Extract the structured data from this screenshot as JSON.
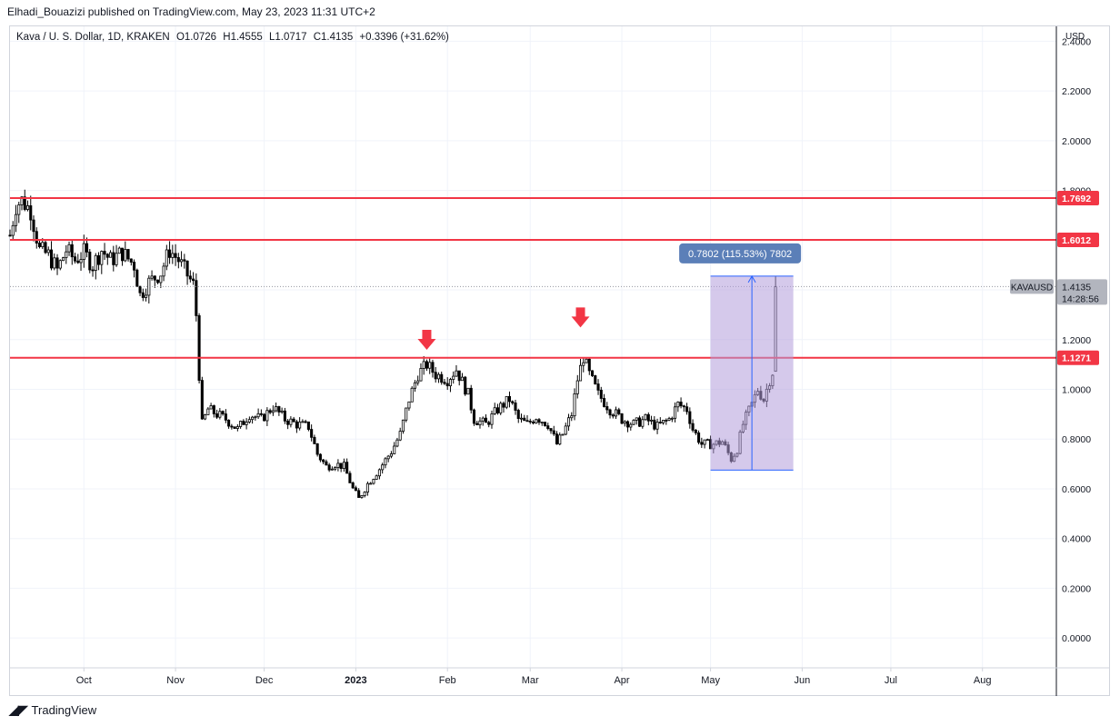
{
  "header": {
    "publisher": "Elhadi_Bouazizi published on TradingView.com, May 23, 2023 11:31 UTC+2"
  },
  "legend": {
    "symbol": "Kava / U. S. Dollar, 1D, KRAKEN",
    "open": "O1.0726",
    "high": "H1.4555",
    "low": "L1.0717",
    "close": "C1.4135",
    "change": "+0.3396 (+31.62%)"
  },
  "watermark": {
    "text": "TradingView"
  },
  "colors": {
    "candle_up": "#ffffff",
    "candle_down": "#000000",
    "level_line": "#f23645",
    "range_fill": "#b39ddb",
    "range_line": "#2962ff",
    "arrow": "#f23645"
  },
  "chart_data": {
    "type": "candlestick",
    "symbol": "KAVAUSD",
    "currency": "USD",
    "ylim": [
      -0.12,
      2.46
    ],
    "y_ticks": [
      "2.4000",
      "2.2000",
      "2.0000",
      "1.8000",
      "1.6000",
      "1.4000",
      "1.2000",
      "1.0000",
      "0.8000",
      "0.6000",
      "0.4000",
      "0.2000",
      "0.0000"
    ],
    "x_ticks": [
      {
        "label": "Oct",
        "date": "2022-10-01"
      },
      {
        "label": "Nov",
        "date": "2022-11-01"
      },
      {
        "label": "Dec",
        "date": "2022-12-01"
      },
      {
        "label": "2023",
        "date": "2023-01-01"
      },
      {
        "label": "Feb",
        "date": "2023-02-01"
      },
      {
        "label": "Mar",
        "date": "2023-03-01"
      },
      {
        "label": "Apr",
        "date": "2023-04-01"
      },
      {
        "label": "May",
        "date": "2023-05-01"
      },
      {
        "label": "Jun",
        "date": "2023-06-01"
      },
      {
        "label": "Jul",
        "date": "2023-07-01"
      },
      {
        "label": "Aug",
        "date": "2023-08-01"
      }
    ],
    "x_range": [
      "2022-09-06",
      "2023-08-26"
    ],
    "close_path": [
      [
        "2022-09-06",
        1.62
      ],
      [
        "2022-09-08",
        1.74
      ],
      [
        "2022-09-10",
        1.76
      ],
      [
        "2022-09-13",
        1.72
      ],
      [
        "2022-09-16",
        1.56
      ],
      [
        "2022-09-19",
        1.54
      ],
      [
        "2022-09-22",
        1.48
      ],
      [
        "2022-09-25",
        1.56
      ],
      [
        "2022-09-28",
        1.52
      ],
      [
        "2022-10-01",
        1.55
      ],
      [
        "2022-10-04",
        1.5
      ],
      [
        "2022-10-07",
        1.56
      ],
      [
        "2022-10-10",
        1.52
      ],
      [
        "2022-10-14",
        1.55
      ],
      [
        "2022-10-18",
        1.5
      ],
      [
        "2022-10-20",
        1.38
      ],
      [
        "2022-10-23",
        1.43
      ],
      [
        "2022-10-27",
        1.47
      ],
      [
        "2022-10-30",
        1.56
      ],
      [
        "2022-11-02",
        1.52
      ],
      [
        "2022-11-04",
        1.48
      ],
      [
        "2022-11-07",
        1.42
      ],
      [
        "2022-11-08",
        1.3
      ],
      [
        "2022-11-09",
        1.06
      ],
      [
        "2022-11-10",
        0.86
      ],
      [
        "2022-11-12",
        0.92
      ],
      [
        "2022-11-15",
        0.9
      ],
      [
        "2022-11-18",
        0.88
      ],
      [
        "2022-11-22",
        0.84
      ],
      [
        "2022-11-26",
        0.9
      ],
      [
        "2022-11-30",
        0.88
      ],
      [
        "2022-12-04",
        0.93
      ],
      [
        "2022-12-08",
        0.88
      ],
      [
        "2022-12-12",
        0.86
      ],
      [
        "2022-12-16",
        0.85
      ],
      [
        "2022-12-19",
        0.74
      ],
      [
        "2022-12-22",
        0.69
      ],
      [
        "2022-12-25",
        0.7
      ],
      [
        "2022-12-28",
        0.69
      ],
      [
        "2022-12-31",
        0.6
      ],
      [
        "2023-01-02",
        0.56
      ],
      [
        "2023-01-05",
        0.62
      ],
      [
        "2023-01-09",
        0.68
      ],
      [
        "2023-01-13",
        0.75
      ],
      [
        "2023-01-16",
        0.82
      ],
      [
        "2023-01-19",
        0.96
      ],
      [
        "2023-01-22",
        1.06
      ],
      [
        "2023-01-25",
        1.1
      ],
      [
        "2023-01-28",
        1.06
      ],
      [
        "2023-02-01",
        1.04
      ],
      [
        "2023-02-04",
        1.08
      ],
      [
        "2023-02-08",
        0.98
      ],
      [
        "2023-02-10",
        0.88
      ],
      [
        "2023-02-14",
        0.86
      ],
      [
        "2023-02-18",
        0.92
      ],
      [
        "2023-02-22",
        0.96
      ],
      [
        "2023-02-25",
        0.88
      ],
      [
        "2023-02-28",
        0.86
      ],
      [
        "2023-03-03",
        0.89
      ],
      [
        "2023-03-07",
        0.86
      ],
      [
        "2023-03-10",
        0.78
      ],
      [
        "2023-03-12",
        0.82
      ],
      [
        "2023-03-15",
        0.9
      ],
      [
        "2023-03-17",
        1.04
      ],
      [
        "2023-03-19",
        1.13
      ],
      [
        "2023-03-21",
        1.06
      ],
      [
        "2023-03-24",
        0.98
      ],
      [
        "2023-03-28",
        0.92
      ],
      [
        "2023-04-01",
        0.88
      ],
      [
        "2023-04-05",
        0.86
      ],
      [
        "2023-04-09",
        0.88
      ],
      [
        "2023-04-13",
        0.85
      ],
      [
        "2023-04-17",
        0.88
      ],
      [
        "2023-04-20",
        0.94
      ],
      [
        "2023-04-23",
        0.92
      ],
      [
        "2023-04-25",
        0.84
      ],
      [
        "2023-04-28",
        0.78
      ],
      [
        "2023-05-02",
        0.78
      ],
      [
        "2023-05-05",
        0.79
      ],
      [
        "2023-05-08",
        0.72
      ],
      [
        "2023-05-10",
        0.76
      ],
      [
        "2023-05-12",
        0.86
      ],
      [
        "2023-05-15",
        0.94
      ],
      [
        "2023-05-17",
        1.0
      ],
      [
        "2023-05-19",
        0.96
      ],
      [
        "2023-05-21",
        1.04
      ],
      [
        "2023-05-22",
        1.07
      ],
      [
        "2023-05-23",
        1.41
      ]
    ],
    "last_candle": {
      "date": "2023-05-23",
      "open": 1.0726,
      "high": 1.4555,
      "low": 1.0717,
      "close": 1.4135
    },
    "levels": [
      {
        "value": 1.7692,
        "label": "1.7692"
      },
      {
        "value": 1.6012,
        "label": "1.6012"
      },
      {
        "value": 1.1271,
        "label": "1.1271"
      }
    ],
    "arrows": [
      {
        "date": "2023-01-25",
        "value": 1.13,
        "direction": "down"
      },
      {
        "date": "2023-03-18",
        "value": 1.22,
        "direction": "down"
      }
    ],
    "price_range": {
      "start": "2023-05-01",
      "end": "2023-05-29",
      "low": 0.6753,
      "high": 1.4555,
      "label": "0.7802 (115.53%) 7802"
    },
    "last_price": {
      "symbol": "KAVAUSD",
      "value": "1.4135",
      "countdown": "14:28:56"
    }
  }
}
